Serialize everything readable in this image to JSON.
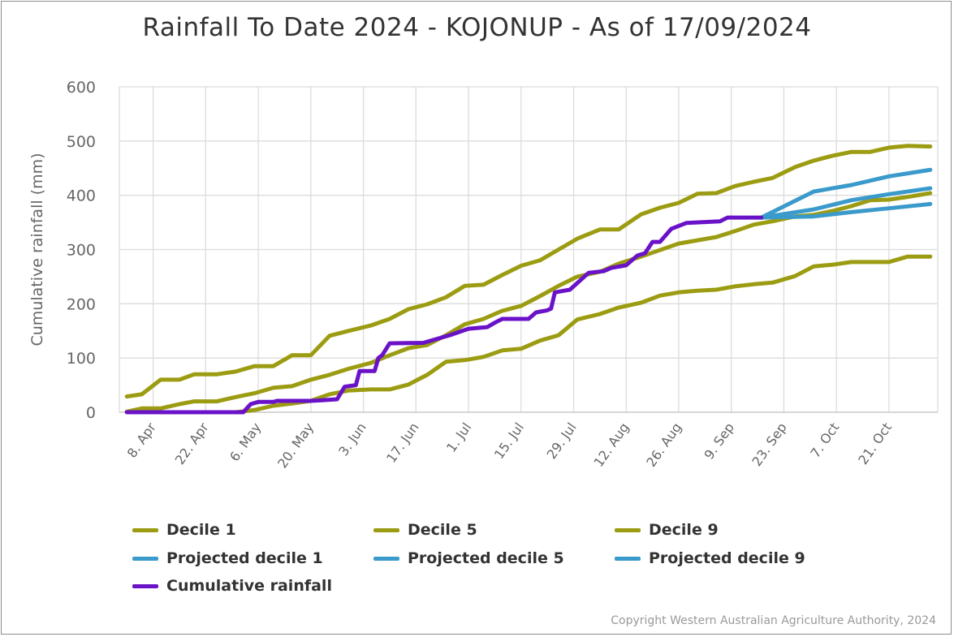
{
  "chart_data": {
    "type": "line",
    "title": "Rainfall To Date 2024 - KOJONUP - As of 17/09/2024",
    "xlabel": "",
    "ylabel": "Cumulative rainfall (mm)",
    "ylim": [
      0,
      600
    ],
    "yticks": [
      0,
      100,
      200,
      300,
      400,
      500,
      600
    ],
    "xlim": [
      "2024-03-30",
      "2024-11-03"
    ],
    "xticks": [
      {
        "date": "2024-04-08",
        "label": "8. Apr"
      },
      {
        "date": "2024-04-22",
        "label": "22. Apr"
      },
      {
        "date": "2024-05-06",
        "label": "6. May"
      },
      {
        "date": "2024-05-20",
        "label": "20. May"
      },
      {
        "date": "2024-06-03",
        "label": "3. Jun"
      },
      {
        "date": "2024-06-17",
        "label": "17. Jun"
      },
      {
        "date": "2024-07-01",
        "label": "1. Jul"
      },
      {
        "date": "2024-07-15",
        "label": "15. Jul"
      },
      {
        "date": "2024-07-29",
        "label": "29. Jul"
      },
      {
        "date": "2024-08-12",
        "label": "12. Aug"
      },
      {
        "date": "2024-08-26",
        "label": "26. Aug"
      },
      {
        "date": "2024-09-09",
        "label": "9. Sep"
      },
      {
        "date": "2024-09-23",
        "label": "23. Sep"
      },
      {
        "date": "2024-10-07",
        "label": "7. Oct"
      },
      {
        "date": "2024-10-21",
        "label": "21. Oct"
      }
    ],
    "grid": true,
    "legend_position": "bottom",
    "decile_x": [
      "2024-04-01",
      "2024-04-05",
      "2024-04-10",
      "2024-04-15",
      "2024-04-19",
      "2024-04-25",
      "2024-04-30",
      "2024-05-05",
      "2024-05-10",
      "2024-05-15",
      "2024-05-20",
      "2024-05-25",
      "2024-05-30",
      "2024-06-05",
      "2024-06-10",
      "2024-06-15",
      "2024-06-20",
      "2024-06-25",
      "2024-06-30",
      "2024-07-05",
      "2024-07-10",
      "2024-07-15",
      "2024-07-20",
      "2024-07-25",
      "2024-07-30",
      "2024-08-05",
      "2024-08-10",
      "2024-08-16",
      "2024-08-21",
      "2024-08-26",
      "2024-08-31",
      "2024-09-05",
      "2024-09-10",
      "2024-09-15",
      "2024-09-20",
      "2024-09-26",
      "2024-10-01",
      "2024-10-06",
      "2024-10-11",
      "2024-10-16",
      "2024-10-21",
      "2024-10-26",
      "2024-11-01"
    ],
    "series": [
      {
        "name": "Decile 1",
        "color": "#9c9c12",
        "values": [
          0,
          0,
          0,
          0,
          0,
          0,
          0,
          4,
          12,
          16,
          21,
          33,
          40,
          42,
          42,
          51,
          69,
          93,
          96,
          102,
          114,
          117,
          132,
          142,
          171,
          181,
          193,
          202,
          215,
          221,
          224,
          226,
          232,
          236,
          239,
          251,
          269,
          272,
          277,
          277,
          277,
          287,
          287
        ]
      },
      {
        "name": "Decile 5",
        "color": "#9c9c12",
        "values": [
          1,
          7,
          7,
          15,
          20,
          20,
          28,
          35,
          45,
          48,
          60,
          69,
          80,
          91,
          105,
          118,
          124,
          142,
          162,
          172,
          187,
          196,
          214,
          233,
          250,
          259,
          274,
          287,
          299,
          311,
          317,
          323,
          334,
          346,
          352,
          361,
          364,
          371,
          380,
          391,
          392,
          397,
          404
        ]
      },
      {
        "name": "Decile 9",
        "color": "#9c9c12",
        "values": [
          29,
          33,
          60,
          60,
          70,
          70,
          75,
          85,
          85,
          105,
          105,
          141,
          150,
          160,
          172,
          190,
          199,
          212,
          233,
          235,
          253,
          270,
          280,
          300,
          320,
          337,
          337,
          365,
          377,
          386,
          403,
          404,
          417,
          425,
          432,
          452,
          464,
          473,
          480,
          480,
          488,
          491,
          490
        ]
      },
      {
        "name": "Projected decile 1",
        "color": "#3a9acb",
        "x": [
          "2024-09-17",
          "2024-10-01",
          "2024-10-11",
          "2024-10-21",
          "2024-11-01"
        ],
        "values": [
          359,
          361,
          369,
          376,
          384
        ]
      },
      {
        "name": "Projected decile 5",
        "color": "#3a9acb",
        "x": [
          "2024-09-17",
          "2024-10-01",
          "2024-10-11",
          "2024-10-21",
          "2024-11-01"
        ],
        "values": [
          359,
          374,
          391,
          402,
          413
        ]
      },
      {
        "name": "Projected decile 9",
        "color": "#3a9acb",
        "x": [
          "2024-09-17",
          "2024-10-01",
          "2024-10-11",
          "2024-10-21",
          "2024-11-01"
        ],
        "values": [
          359,
          407,
          419,
          435,
          447
        ]
      },
      {
        "name": "Cumulative rainfall",
        "color": "#6a12c8",
        "x": [
          "2024-04-01",
          "2024-05-02",
          "2024-05-04",
          "2024-05-06",
          "2024-05-10",
          "2024-05-11",
          "2024-05-20",
          "2024-05-23",
          "2024-05-27",
          "2024-05-29",
          "2024-06-01",
          "2024-06-02",
          "2024-06-06",
          "2024-06-07",
          "2024-06-08",
          "2024-06-10",
          "2024-06-19",
          "2024-06-23",
          "2024-06-26",
          "2024-07-01",
          "2024-07-06",
          "2024-07-08",
          "2024-07-10",
          "2024-07-17",
          "2024-07-19",
          "2024-07-22",
          "2024-07-23",
          "2024-07-24",
          "2024-07-28",
          "2024-08-02",
          "2024-08-06",
          "2024-08-08",
          "2024-08-12",
          "2024-08-15",
          "2024-08-17",
          "2024-08-19",
          "2024-08-21",
          "2024-08-24",
          "2024-08-28",
          "2024-09-06",
          "2024-09-08",
          "2024-09-17"
        ],
        "values": [
          0,
          0,
          15,
          19,
          19,
          21,
          21,
          22,
          24,
          47,
          50,
          76,
          76,
          100,
          105,
          127,
          128,
          136,
          142,
          154,
          157,
          165,
          172,
          172,
          184,
          188,
          191,
          221,
          226,
          257,
          260,
          266,
          271,
          289,
          293,
          314,
          314,
          338,
          349,
          352,
          359,
          359
        ]
      }
    ]
  },
  "legend": {
    "items": [
      {
        "label": "Decile 1",
        "color": "#9c9c12"
      },
      {
        "label": "Decile 5",
        "color": "#9c9c12"
      },
      {
        "label": "Decile 9",
        "color": "#9c9c12"
      },
      {
        "label": "Projected decile 1",
        "color": "#3a9acb"
      },
      {
        "label": "Projected decile 5",
        "color": "#3a9acb"
      },
      {
        "label": "Projected decile 9",
        "color": "#3a9acb"
      },
      {
        "label": "Cumulative rainfall",
        "color": "#6a12c8"
      }
    ]
  },
  "copyright": "Copyright Western Australian Agriculture Authority, 2024"
}
